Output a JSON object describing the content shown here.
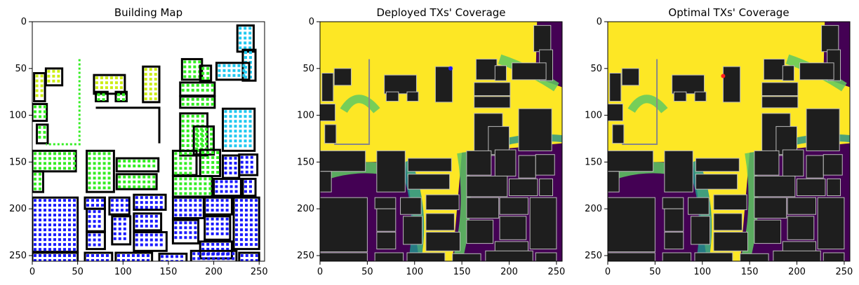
{
  "figure": {
    "panels": [
      {
        "title": "Building Map"
      },
      {
        "title": "Deployed TXs' Coverage"
      },
      {
        "title": "Optimal TXs' Coverage"
      }
    ]
  },
  "chart_data": [
    {
      "type": "heatmap",
      "title": "Building Map",
      "xlim": [
        0,
        256
      ],
      "ylim": [
        256,
        0
      ],
      "xticks": [
        0,
        50,
        100,
        150,
        200,
        250
      ],
      "yticks": [
        0,
        50,
        100,
        150,
        200,
        250
      ],
      "xlabel": "",
      "ylabel": "",
      "grid": false,
      "colors": {
        "background": "#ffffff",
        "building_outline": "#000000",
        "marker_blue": "#1a1aff",
        "marker_lightblue": "#1ec8f0",
        "marker_green": "#33ee22",
        "marker_yellowgreen": "#ccee11"
      }
    },
    {
      "type": "heatmap",
      "title": "Deployed TXs' Coverage",
      "xlim": [
        0,
        256
      ],
      "ylim": [
        256,
        0
      ],
      "xticks": [
        0,
        50,
        100,
        150,
        200,
        250
      ],
      "yticks": [
        0,
        50,
        100,
        150,
        200,
        250
      ],
      "xlabel": "",
      "ylabel": "",
      "grid": false,
      "tx_markers": [
        [
          138,
          50
        ]
      ],
      "colors": {
        "high": "#fde725",
        "mid_high": "#5ec962",
        "mid": "#21918c",
        "low": "#440154",
        "building": "#1e1e1e",
        "tx": "#1a1aff"
      }
    },
    {
      "type": "heatmap",
      "title": "Optimal TXs' Coverage",
      "xlim": [
        0,
        256
      ],
      "ylim": [
        256,
        0
      ],
      "xticks": [
        0,
        50,
        100,
        150,
        200,
        250
      ],
      "yticks": [
        0,
        50,
        100,
        150,
        200,
        250
      ],
      "xlabel": "",
      "ylabel": "",
      "grid": false,
      "tx_markers": [
        [
          122,
          58
        ]
      ],
      "colors": {
        "high": "#fde725",
        "mid_high": "#5ec962",
        "mid": "#21918c",
        "low": "#440154",
        "building": "#1e1e1e",
        "tx": "#ff2020"
      }
    }
  ]
}
